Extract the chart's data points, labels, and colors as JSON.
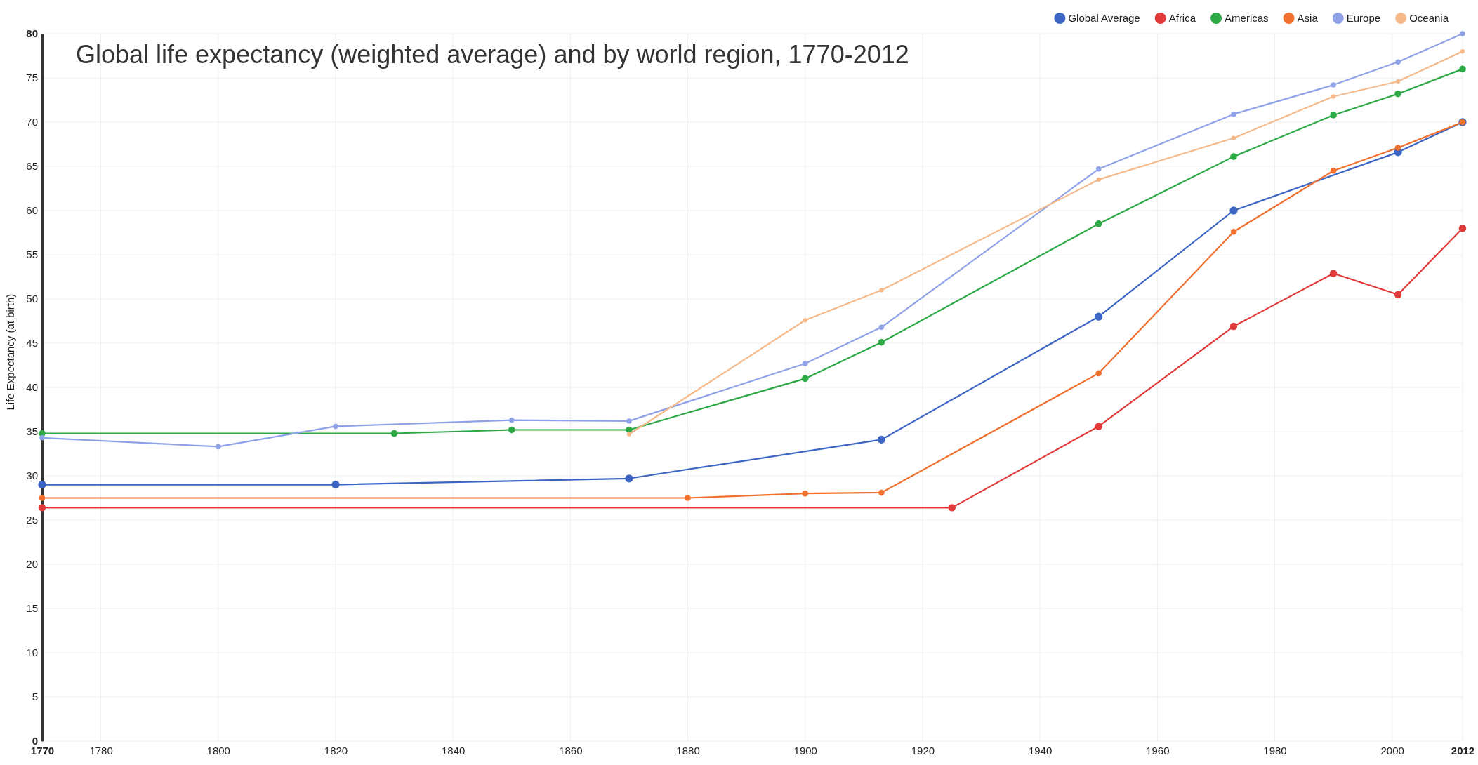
{
  "chart_data": {
    "type": "line",
    "title": "Global life expectancy (weighted average) and by world region, 1770-2012",
    "ylabel": "Life Expectancy (at birth)",
    "xlim": [
      1770,
      2012
    ],
    "xticks": [
      1770,
      1780,
      1800,
      1820,
      1840,
      1860,
      1880,
      1900,
      1920,
      1940,
      1960,
      1980,
      2000,
      2012
    ],
    "ylim": [
      0,
      80
    ],
    "yticks": [
      0,
      5,
      10,
      15,
      20,
      25,
      30,
      35,
      40,
      45,
      50,
      55,
      60,
      65,
      70,
      75,
      80
    ],
    "grid": true,
    "legend": "top right",
    "marker": "circle",
    "line_style": "solid",
    "series": [
      {
        "name": "Global Average",
        "color": "#3d66c4",
        "x": [
          1770,
          1820,
          1870,
          1913,
          1950,
          1973,
          2001,
          2012
        ],
        "values": [
          29.0,
          29.0,
          29.7,
          34.1,
          48.0,
          60.0,
          66.6,
          70.0
        ]
      },
      {
        "name": "Africa",
        "color": "#e03a3a",
        "x": [
          1770,
          1925,
          1950,
          1973,
          1990,
          2001,
          2012
        ],
        "values": [
          26.4,
          26.4,
          35.6,
          46.9,
          52.9,
          50.5,
          58.0
        ]
      },
      {
        "name": "Americas",
        "color": "#2ca845",
        "x": [
          1770,
          1830,
          1850,
          1870,
          1900,
          1913,
          1950,
          1973,
          1990,
          2001,
          2012
        ],
        "values": [
          34.8,
          34.8,
          35.2,
          35.2,
          41.0,
          45.1,
          58.5,
          66.1,
          70.8,
          73.2,
          76.0
        ]
      },
      {
        "name": "Asia",
        "color": "#f07030",
        "x": [
          1770,
          1880,
          1900,
          1913,
          1950,
          1973,
          1990,
          2001,
          2012
        ],
        "values": [
          27.5,
          27.5,
          28.0,
          28.1,
          41.6,
          57.6,
          64.5,
          67.1,
          70.0
        ]
      },
      {
        "name": "Europe",
        "color": "#8fa2e8",
        "x": [
          1770,
          1800,
          1820,
          1850,
          1870,
          1900,
          1913,
          1950,
          1973,
          1990,
          2001,
          2012
        ],
        "values": [
          34.3,
          33.3,
          35.6,
          36.3,
          36.2,
          42.7,
          46.8,
          64.7,
          70.9,
          74.2,
          76.8,
          80.0
        ]
      },
      {
        "name": "Oceania",
        "color": "#f5b98a",
        "x": [
          1870,
          1900,
          1913,
          1950,
          1973,
          1990,
          2001,
          2012
        ],
        "values": [
          34.7,
          47.6,
          51.0,
          63.5,
          68.2,
          72.9,
          74.6,
          78.0
        ]
      }
    ]
  }
}
